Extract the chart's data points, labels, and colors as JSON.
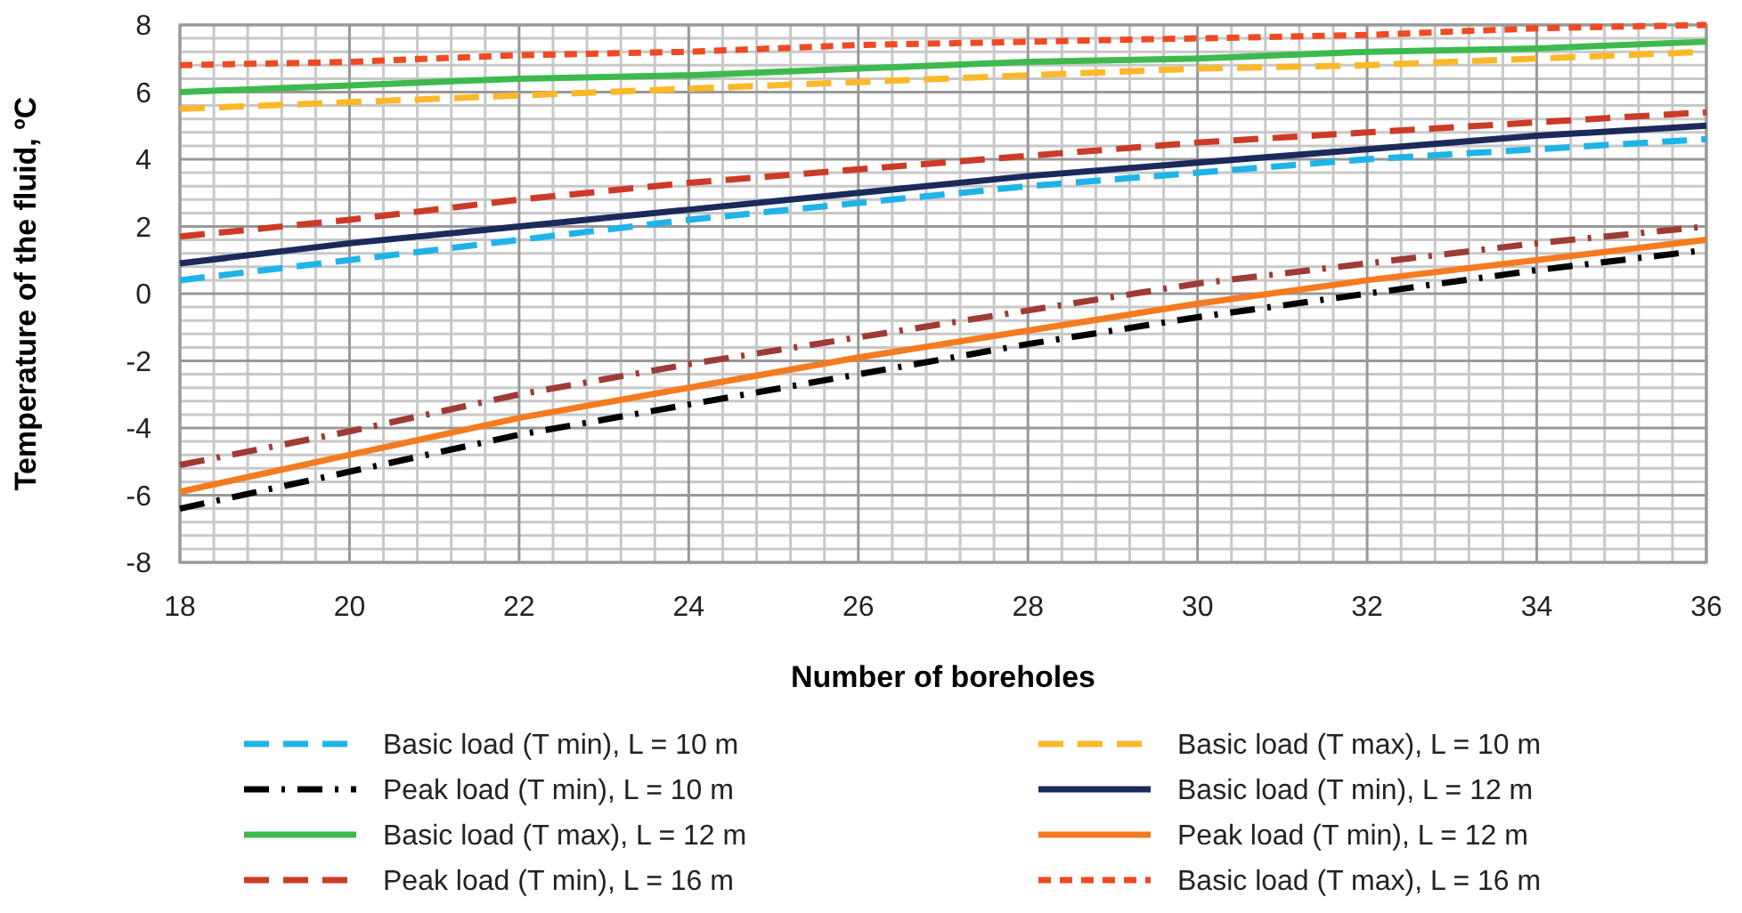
{
  "chart_data": {
    "type": "line",
    "xlabel": "Number of boreholes",
    "ylabel": "Temperature of the fluid, ºC",
    "x": [
      18,
      20,
      22,
      24,
      26,
      28,
      30,
      32,
      34,
      36
    ],
    "xlim": [
      18,
      36
    ],
    "xticks": [
      18,
      20,
      22,
      24,
      26,
      28,
      30,
      32,
      34,
      36
    ],
    "ylim": [
      -8,
      8
    ],
    "yticks": [
      -8,
      -6,
      -4,
      -2,
      0,
      2,
      4,
      6,
      8
    ],
    "grid": true,
    "legend": "bottom",
    "marker": "none",
    "series": [
      {
        "name": "Basic load (T min), L = 10 m",
        "color": "#1fb4e8",
        "line_style": "dashed",
        "values": [
          0.4,
          1.0,
          1.6,
          2.2,
          2.7,
          3.2,
          3.6,
          4.0,
          4.3,
          4.6
        ]
      },
      {
        "name": "Basic load (T max), L = 10 m",
        "color": "#fbb829",
        "line_style": "dashed",
        "values": [
          5.5,
          5.7,
          5.9,
          6.1,
          6.3,
          6.5,
          6.7,
          6.8,
          7.0,
          7.2
        ]
      },
      {
        "name": "Peak load (T min), L = 10 m",
        "color": "#000000",
        "line_style": "dashdot",
        "values": [
          -6.4,
          -5.3,
          -4.2,
          -3.3,
          -2.4,
          -1.5,
          -0.7,
          0.0,
          0.7,
          1.3
        ]
      },
      {
        "name": "Basic load (T min), L = 12 m",
        "color": "#1b2a5a",
        "line_style": "solid",
        "values": [
          0.9,
          1.5,
          2.0,
          2.5,
          3.0,
          3.5,
          3.9,
          4.3,
          4.7,
          5.0
        ]
      },
      {
        "name": "Basic load (T max), L = 12 m",
        "color": "#3dba4e",
        "line_style": "solid",
        "values": [
          6.0,
          6.2,
          6.4,
          6.5,
          6.7,
          6.9,
          7.0,
          7.2,
          7.3,
          7.5
        ]
      },
      {
        "name": "Peak load (T min), L = 12 m",
        "color": "#f47b20",
        "line_style": "solid",
        "values": [
          -5.9,
          -4.8,
          -3.7,
          -2.8,
          -1.9,
          -1.1,
          -0.3,
          0.4,
          1.0,
          1.6
        ]
      },
      {
        "name": "Peak load (T min), L = 16 m",
        "color": "#cc3b27",
        "line_style": "dashed",
        "values": [
          1.7,
          2.2,
          2.8,
          3.3,
          3.7,
          4.1,
          4.5,
          4.8,
          5.1,
          5.4
        ]
      },
      {
        "name": "Basic load (T max), L = 16 m",
        "color": "#ef4a23",
        "line_style": "dotted",
        "values": [
          6.8,
          6.9,
          7.1,
          7.2,
          7.4,
          7.5,
          7.6,
          7.7,
          7.9,
          8.0
        ]
      },
      {
        "color": "#9e3b35",
        "line_style": "dashdot",
        "values": [
          -5.1,
          -4.1,
          -3.0,
          -2.1,
          -1.3,
          -0.5,
          0.3,
          0.9,
          1.5,
          2.0
        ]
      }
    ]
  }
}
